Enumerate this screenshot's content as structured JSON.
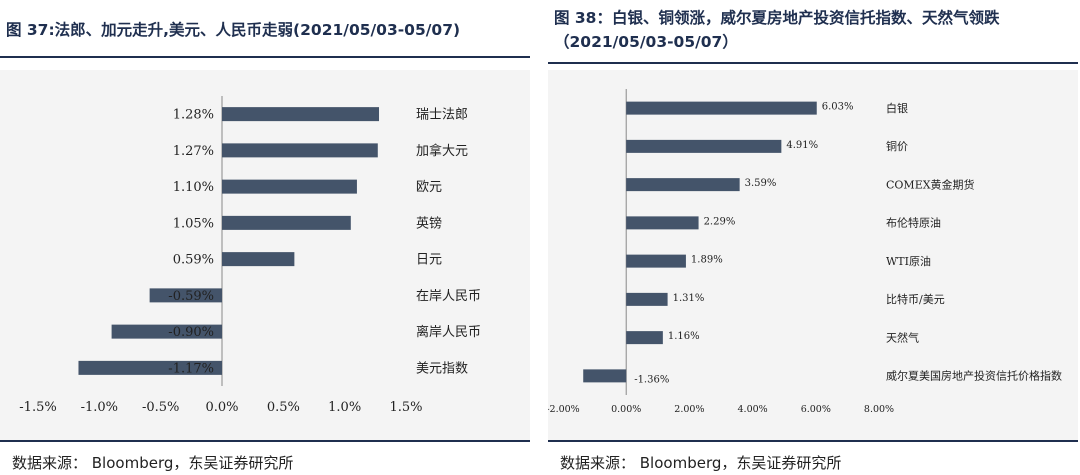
{
  "left": {
    "title": "图 37:法郎、加元走升,美元、人民币走弱(2021/05/03-05/07)",
    "source": "数据来源： Bloomberg，东吴证券研究所",
    "chart_data": {
      "type": "bar",
      "orientation": "horizontal",
      "categories": [
        "瑞士法郎",
        "加拿大元",
        "欧元",
        "英镑",
        "日元",
        "在岸人民币",
        "离岸人民币",
        "美元指数"
      ],
      "values": [
        1.28,
        1.27,
        1.1,
        1.05,
        0.59,
        -0.59,
        -0.9,
        -1.17
      ],
      "value_labels": [
        "1.28%",
        "1.27%",
        "1.10%",
        "1.05%",
        "0.59%",
        "-0.59%",
        "-0.90%",
        "-1.17%"
      ],
      "x_ticks": [
        -1.5,
        -1.0,
        -0.5,
        0,
        0.5,
        1.0,
        1.5
      ],
      "x_tick_labels": [
        "-1.5%",
        "-1.0%",
        "-0.5%",
        "0.0%",
        "0.5%",
        "1.0%",
        "1.5%"
      ],
      "xlim": [
        -1.5,
        1.5
      ],
      "bar_color": "#44546a",
      "grid": false
    }
  },
  "right": {
    "title": "图 38：白银、铜领涨，威尔夏房地产投资信托指数、天然气领跌（2021/05/03-05/07）",
    "source": "数据来源： Bloomberg，东吴证券研究所",
    "chart_data": {
      "type": "bar",
      "orientation": "horizontal",
      "categories": [
        "白银",
        "铜价",
        "COMEX黄金期货",
        "布伦特原油",
        "WTI原油",
        "比特币/美元",
        "天然气",
        "威尔夏美国房地产投资信托价格指数"
      ],
      "values": [
        6.03,
        4.91,
        3.59,
        2.29,
        1.89,
        1.31,
        1.16,
        -1.36
      ],
      "value_labels": [
        "6.03%",
        "4.91%",
        "3.59%",
        "2.29%",
        "1.89%",
        "1.31%",
        "1.16%",
        "-1.36%"
      ],
      "x_ticks": [
        -2,
        0,
        2,
        4,
        6,
        8
      ],
      "x_tick_labels": [
        "-2.00%",
        "0.00%",
        "2.00%",
        "4.00%",
        "6.00%",
        "8.00%"
      ],
      "xlim": [
        -2,
        8
      ],
      "bar_color": "#44546a",
      "grid": false
    }
  }
}
